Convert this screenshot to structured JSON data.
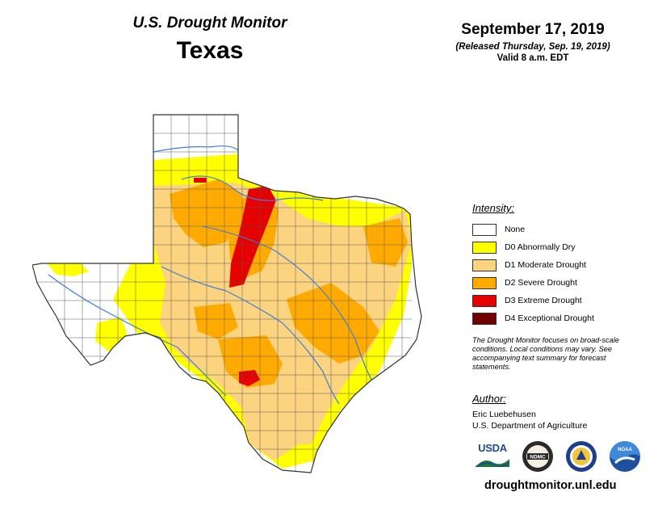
{
  "header": {
    "product_name": "U.S. Drought Monitor",
    "state": "Texas",
    "map_date": "September 17, 2019",
    "release_note": "(Released Thursday, Sep. 19, 2019)",
    "valid_time": "Valid 8 a.m. EDT"
  },
  "legend": {
    "title": "Intensity:",
    "items": [
      {
        "label": "None",
        "color": "#ffffff"
      },
      {
        "label": "D0 Abnormally Dry",
        "color": "#ffff00"
      },
      {
        "label": "D1 Moderate Drought",
        "color": "#fcd37f"
      },
      {
        "label": "D2 Severe Drought",
        "color": "#ffaa00"
      },
      {
        "label": "D3 Extreme Drought",
        "color": "#e60000"
      },
      {
        "label": "D4 Exceptional Drought",
        "color": "#730000"
      }
    ]
  },
  "disclaimer": "The Drought Monitor focuses on broad-scale conditions. Local conditions may vary. See accompanying text summary for forecast statements.",
  "author": {
    "heading": "Author:",
    "name": "Eric Luebehusen",
    "organization": "U.S. Department of Agriculture"
  },
  "logos": [
    {
      "name": "usda-logo",
      "text": "USDA"
    },
    {
      "name": "ndmc-logo",
      "text": "NDMC"
    },
    {
      "name": "doc-seal-logo",
      "text": ""
    },
    {
      "name": "noaa-logo",
      "text": "NOAA"
    }
  ],
  "website": "droughtmonitor.unl.edu",
  "colors": {
    "river": "#3d7fd6",
    "county_border": "#5a5a5a",
    "state_border": "#333333"
  }
}
